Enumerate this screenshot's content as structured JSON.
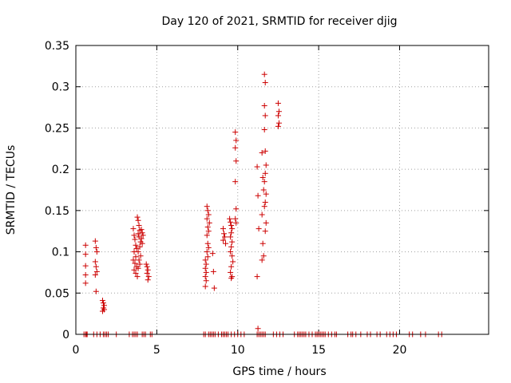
{
  "chart_data": {
    "type": "scatter",
    "title": "Day 120 of 2021, SRMTID for receiver djig",
    "xlabel": "GPS time / hours",
    "ylabel": "SRMTID / TECUs",
    "xlim": [
      0,
      25.5
    ],
    "ylim": [
      0,
      0.35
    ],
    "grid": true,
    "marker": "+",
    "marker_color": "#cc0000",
    "x_ticks": [
      {
        "value": 0,
        "label": "0"
      },
      {
        "value": 5,
        "label": "5"
      },
      {
        "value": 10,
        "label": "10"
      },
      {
        "value": 15,
        "label": "15"
      },
      {
        "value": 20,
        "label": "20"
      }
    ],
    "y_ticks": [
      {
        "value": 0,
        "label": "0"
      },
      {
        "value": 0.05,
        "label": "0.05"
      },
      {
        "value": 0.1,
        "label": "0.1"
      },
      {
        "value": 0.15,
        "label": "0.15"
      },
      {
        "value": 0.2,
        "label": "0.2"
      },
      {
        "value": 0.25,
        "label": "0.25"
      },
      {
        "value": 0.3,
        "label": "0.3"
      },
      {
        "value": 0.35,
        "label": "0.35"
      }
    ],
    "series": [
      {
        "name": "SRMTID",
        "points": [
          [
            0.6,
            0.108
          ],
          [
            0.6,
            0.097
          ],
          [
            0.6,
            0.083
          ],
          [
            0.6,
            0.072
          ],
          [
            0.6,
            0.062
          ],
          [
            1.2,
            0.113
          ],
          [
            1.25,
            0.105
          ],
          [
            1.3,
            0.1
          ],
          [
            1.2,
            0.088
          ],
          [
            1.25,
            0.082
          ],
          [
            1.3,
            0.076
          ],
          [
            1.2,
            0.072
          ],
          [
            1.25,
            0.052
          ],
          [
            1.65,
            0.041
          ],
          [
            1.7,
            0.038
          ],
          [
            1.75,
            0.035
          ],
          [
            1.7,
            0.032
          ],
          [
            1.65,
            0.028
          ],
          [
            1.75,
            0.03
          ],
          [
            3.55,
            0.128
          ],
          [
            3.6,
            0.12
          ],
          [
            3.65,
            0.115
          ],
          [
            3.7,
            0.108
          ],
          [
            3.75,
            0.104
          ],
          [
            3.6,
            0.1
          ],
          [
            3.7,
            0.094
          ],
          [
            3.55,
            0.09
          ],
          [
            3.65,
            0.086
          ],
          [
            3.75,
            0.082
          ],
          [
            3.6,
            0.078
          ],
          [
            3.7,
            0.074
          ],
          [
            3.8,
            0.07
          ],
          [
            3.8,
            0.142
          ],
          [
            3.85,
            0.138
          ],
          [
            3.9,
            0.132
          ],
          [
            3.95,
            0.126
          ],
          [
            3.85,
            0.122
          ],
          [
            3.9,
            0.118
          ],
          [
            4.0,
            0.112
          ],
          [
            3.95,
            0.106
          ],
          [
            3.85,
            0.1
          ],
          [
            4.0,
            0.095
          ],
          [
            3.9,
            0.09
          ],
          [
            3.95,
            0.085
          ],
          [
            3.85,
            0.08
          ],
          [
            4.05,
            0.127
          ],
          [
            4.1,
            0.123
          ],
          [
            4.15,
            0.12
          ],
          [
            4.05,
            0.116
          ],
          [
            4.1,
            0.11
          ],
          [
            4.35,
            0.085
          ],
          [
            4.4,
            0.082
          ],
          [
            4.45,
            0.078
          ],
          [
            4.4,
            0.074
          ],
          [
            4.5,
            0.07
          ],
          [
            4.45,
            0.066
          ],
          [
            8.0,
            0.09
          ],
          [
            8.05,
            0.085
          ],
          [
            8.0,
            0.08
          ],
          [
            8.05,
            0.075
          ],
          [
            8.0,
            0.07
          ],
          [
            8.05,
            0.065
          ],
          [
            8.0,
            0.058
          ],
          [
            8.1,
            0.155
          ],
          [
            8.15,
            0.15
          ],
          [
            8.2,
            0.145
          ],
          [
            8.1,
            0.14
          ],
          [
            8.25,
            0.135
          ],
          [
            8.15,
            0.13
          ],
          [
            8.2,
            0.125
          ],
          [
            8.1,
            0.12
          ],
          [
            8.15,
            0.11
          ],
          [
            8.2,
            0.105
          ],
          [
            8.1,
            0.1
          ],
          [
            8.15,
            0.094
          ],
          [
            8.5,
            0.076
          ],
          [
            8.55,
            0.056
          ],
          [
            8.45,
            0.098
          ],
          [
            9.1,
            0.128
          ],
          [
            9.15,
            0.122
          ],
          [
            9.2,
            0.118
          ],
          [
            9.1,
            0.114
          ],
          [
            9.25,
            0.11
          ],
          [
            9.5,
            0.14
          ],
          [
            9.55,
            0.136
          ],
          [
            9.6,
            0.132
          ],
          [
            9.65,
            0.128
          ],
          [
            9.6,
            0.123
          ],
          [
            9.55,
            0.118
          ],
          [
            9.65,
            0.112
          ],
          [
            9.6,
            0.106
          ],
          [
            9.55,
            0.1
          ],
          [
            9.65,
            0.095
          ],
          [
            9.7,
            0.088
          ],
          [
            9.6,
            0.082
          ],
          [
            9.55,
            0.075
          ],
          [
            9.65,
            0.07
          ],
          [
            9.6,
            0.068
          ],
          [
            9.85,
            0.245
          ],
          [
            9.9,
            0.235
          ],
          [
            9.85,
            0.226
          ],
          [
            9.9,
            0.21
          ],
          [
            9.85,
            0.185
          ],
          [
            9.9,
            0.152
          ],
          [
            9.85,
            0.14
          ],
          [
            9.9,
            0.135
          ],
          [
            11.2,
            0.203
          ],
          [
            11.25,
            0.168
          ],
          [
            11.3,
            0.128
          ],
          [
            11.2,
            0.07
          ],
          [
            11.25,
            0.007
          ],
          [
            11.5,
            0.22
          ],
          [
            11.55,
            0.19
          ],
          [
            11.6,
            0.175
          ],
          [
            11.5,
            0.145
          ],
          [
            11.55,
            0.11
          ],
          [
            11.6,
            0.095
          ],
          [
            11.5,
            0.09
          ],
          [
            11.65,
            0.315
          ],
          [
            11.7,
            0.305
          ],
          [
            11.65,
            0.277
          ],
          [
            11.7,
            0.265
          ],
          [
            11.65,
            0.248
          ],
          [
            11.7,
            0.222
          ],
          [
            11.75,
            0.205
          ],
          [
            11.7,
            0.195
          ],
          [
            11.65,
            0.185
          ],
          [
            11.75,
            0.17
          ],
          [
            11.7,
            0.16
          ],
          [
            11.65,
            0.155
          ],
          [
            11.75,
            0.135
          ],
          [
            11.7,
            0.125
          ],
          [
            12.5,
            0.28
          ],
          [
            12.55,
            0.27
          ],
          [
            12.5,
            0.265
          ],
          [
            12.55,
            0.256
          ],
          [
            12.5,
            0.252
          ]
        ],
        "zero_points": [
          0.5,
          0.6,
          0.65,
          0.7,
          1.1,
          1.3,
          1.5,
          1.7,
          1.8,
          1.9,
          2.0,
          2.5,
          3.3,
          3.5,
          3.6,
          3.7,
          3.8,
          4.1,
          4.2,
          4.3,
          4.6,
          4.7,
          7.9,
          8.0,
          8.2,
          8.3,
          8.4,
          8.5,
          8.6,
          8.8,
          9.0,
          9.1,
          9.2,
          9.3,
          9.4,
          9.6,
          9.8,
          10.0,
          10.2,
          10.4,
          11.2,
          11.3,
          11.4,
          11.5,
          11.6,
          11.7,
          12.2,
          12.4,
          12.6,
          12.8,
          13.5,
          13.7,
          13.8,
          13.9,
          14.0,
          14.1,
          14.2,
          14.4,
          14.6,
          14.8,
          14.9,
          15.0,
          15.1,
          15.2,
          15.3,
          15.4,
          15.6,
          15.8,
          16.0,
          16.1,
          16.8,
          17.0,
          17.1,
          17.3,
          17.6,
          18.0,
          18.2,
          18.6,
          18.8,
          19.2,
          19.4,
          19.6,
          19.8,
          20.6,
          20.8,
          21.3,
          21.6,
          22.4,
          22.6
        ]
      }
    ]
  }
}
